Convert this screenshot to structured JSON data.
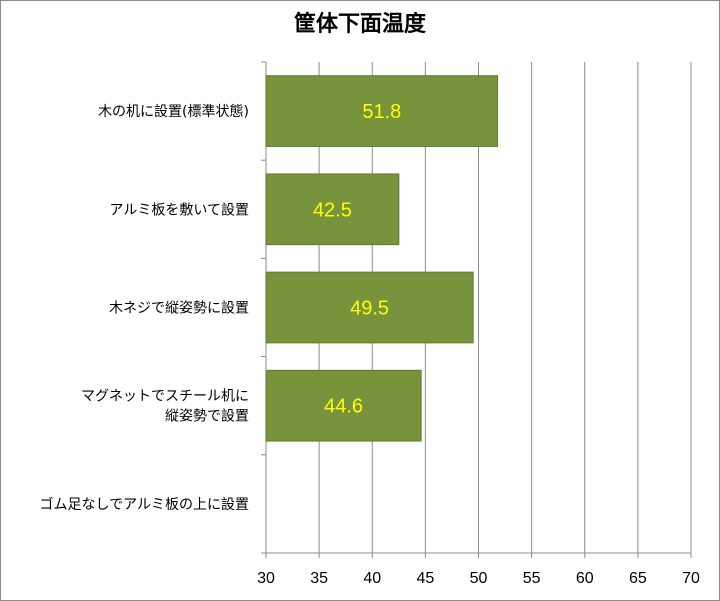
{
  "chart_data": {
    "type": "bar",
    "orientation": "horizontal",
    "title": "筐体下面温度",
    "categories": [
      "木の机に設置(標準状態)",
      "アルミ板を敷いて設置",
      "木ネジで縦姿勢に設置",
      "マグネットでスチール机に\n縦姿勢で設置",
      "ゴム足なしでアルミ板の上に設置"
    ],
    "values": [
      51.8,
      42.5,
      49.5,
      44.6,
      null
    ],
    "data_labels": [
      "51.8",
      "42.5",
      "49.5",
      "44.6",
      ""
    ],
    "xlim": [
      30,
      70
    ],
    "xticks": [
      30,
      35,
      40,
      45,
      50,
      55,
      60,
      65,
      70
    ],
    "grid": true,
    "legend": "none",
    "colors": {
      "bar_fill": "#77933c",
      "bar_stroke": "#5f7a2c",
      "data_label": "#ffff00",
      "grid": "#8c8c8c"
    }
  }
}
